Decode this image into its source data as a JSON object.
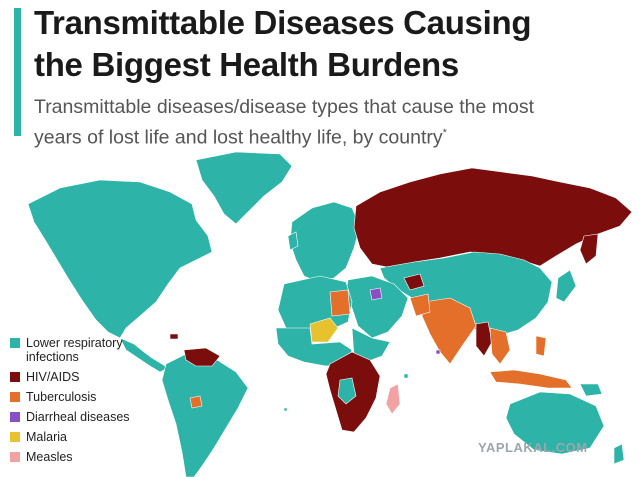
{
  "header": {
    "title_line1": "Transmittable Diseases Causing",
    "title_line2": "the Biggest Health Burdens",
    "subtitle_line1": "Transmittable diseases/disease types that cause the most",
    "subtitle_line2": "years of lost life and lost healthy life, by country",
    "subtitle_marker": "*"
  },
  "legend": {
    "items": [
      {
        "label_line1": "Lower respiratory",
        "label_line2": "infections",
        "color": "#2db3a7"
      },
      {
        "label_line1": "HIV/AIDS",
        "label_line2": "",
        "color": "#7b0d0d"
      },
      {
        "label_line1": "Tuberculosis",
        "label_line2": "",
        "color": "#e36f2a"
      },
      {
        "label_line1": "Diarrheal diseases",
        "label_line2": "",
        "color": "#8a4fc4"
      },
      {
        "label_line1": "Malaria",
        "label_line2": "",
        "color": "#e6c32e"
      },
      {
        "label_line1": "Measles",
        "label_line2": "",
        "color": "#f2a2a2"
      }
    ]
  },
  "watermark": "YAPLAKAL.COM"
}
